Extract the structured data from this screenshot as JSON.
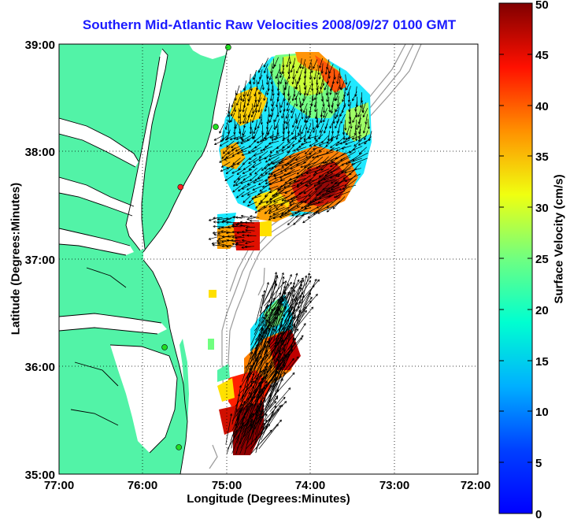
{
  "map": {
    "title": "Southern Mid-Atlantic Raw Velocities 2008/09/27 0100 GMT",
    "xlabel": "Longitude (Degrees:Minutes)",
    "ylabel": "Latitude (Degrees:Minutes)",
    "x_ticks": [
      "77:00",
      "76:00",
      "75:00",
      "74:00",
      "73:00",
      "72:00"
    ],
    "y_ticks": [
      "39:00",
      "38:00",
      "37:00",
      "36:00",
      "35:00"
    ],
    "extent": {
      "lon_min": -77,
      "lon_max": -72,
      "lat_min": 35,
      "lat_max": 39
    },
    "colors": {
      "land": "#52f3a7",
      "bathymetry": "#999999",
      "grid": "#000000",
      "title": "#1a1aff",
      "station": "#22dd22",
      "station_alt": "#ff2222"
    }
  },
  "colorbar": {
    "label": "Surface Velocity (cm/s)",
    "ticks": [
      "0",
      "5",
      "10",
      "15",
      "20",
      "25",
      "30",
      "35",
      "40",
      "45",
      "50"
    ],
    "min": 0,
    "max": 50,
    "colormap": "jet"
  },
  "stations": [
    {
      "lon": -74.98,
      "lat": 38.97,
      "color": "green"
    },
    {
      "lon": -75.13,
      "lat": 38.23,
      "color": "green"
    },
    {
      "lon": -75.55,
      "lat": 37.67,
      "color": "red"
    },
    {
      "lon": -75.74,
      "lat": 36.18,
      "color": "green"
    },
    {
      "lon": -75.57,
      "lat": 35.25,
      "color": "green"
    }
  ]
}
